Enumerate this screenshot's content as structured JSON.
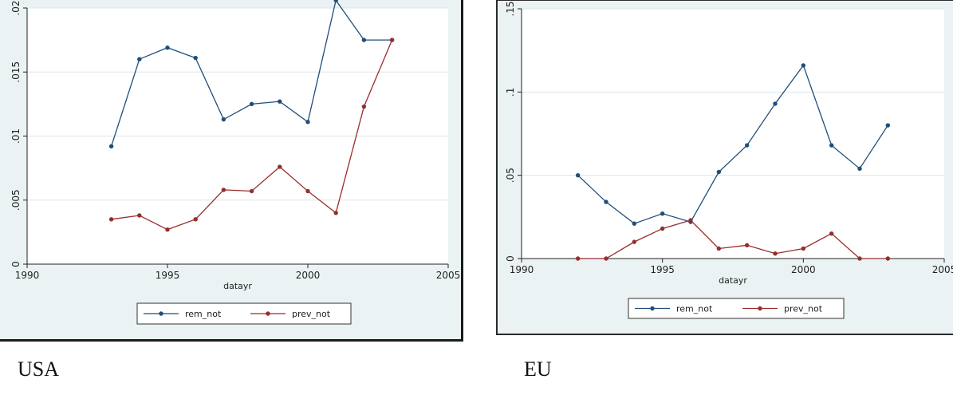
{
  "captions": {
    "left": "USA",
    "right": "EU"
  },
  "colors": {
    "series1": "#1f4e79",
    "series2": "#962d2d",
    "grid": "#dde6e8",
    "plot_bg": "#ffffff",
    "panel_bg": "#eaf2f3"
  },
  "chart_data": [
    {
      "type": "line",
      "xlabel": "datayr",
      "ylabel": "",
      "xlim": [
        1990,
        2005
      ],
      "ylim": [
        0,
        0.02
      ],
      "xticks": [
        1990,
        1995,
        2000,
        2005
      ],
      "xtick_labels": [
        "1990",
        "1995",
        "2000",
        "2005"
      ],
      "yticks": [
        0,
        0.005,
        0.01,
        0.015,
        0.02
      ],
      "ytick_labels": [
        "0",
        ".005",
        ".01",
        ".015",
        ".02"
      ],
      "grid": true,
      "legend_position": "bottom",
      "x": [
        1993,
        1994,
        1995,
        1996,
        1997,
        1998,
        1999,
        2000,
        2001,
        2002,
        2003
      ],
      "series": [
        {
          "name": "rem_not",
          "values": [
            0.0092,
            0.016,
            0.0169,
            0.0161,
            0.0113,
            0.0125,
            0.0127,
            0.0111,
            0.0206,
            0.0175,
            0.0175
          ]
        },
        {
          "name": "prev_not",
          "values": [
            0.0035,
            0.0038,
            0.0027,
            0.0035,
            0.0058,
            0.0057,
            0.0076,
            0.0057,
            0.004,
            0.0123,
            0.0175
          ]
        }
      ]
    },
    {
      "type": "line",
      "xlabel": "datayr",
      "ylabel": "",
      "xlim": [
        1990,
        2005
      ],
      "ylim": [
        0,
        0.15
      ],
      "xticks": [
        1990,
        1995,
        2000,
        2005
      ],
      "xtick_labels": [
        "1990",
        "1995",
        "2000",
        "2005"
      ],
      "yticks": [
        0,
        0.05,
        0.1,
        0.15
      ],
      "ytick_labels": [
        "0",
        ".05",
        ".1",
        ".15"
      ],
      "grid": true,
      "legend_position": "bottom",
      "x": [
        1992,
        1993,
        1994,
        1995,
        1996,
        1997,
        1998,
        1999,
        2000,
        2001,
        2002,
        2003
      ],
      "series": [
        {
          "name": "rem_not",
          "values": [
            0.05,
            0.034,
            0.021,
            0.027,
            0.022,
            0.052,
            0.068,
            0.093,
            0.116,
            0.068,
            0.054,
            0.08
          ]
        },
        {
          "name": "prev_not",
          "values": [
            0,
            0,
            0.01,
            0.018,
            0.023,
            0.006,
            0.008,
            0.003,
            0.006,
            0.015,
            0,
            0
          ]
        }
      ]
    }
  ]
}
